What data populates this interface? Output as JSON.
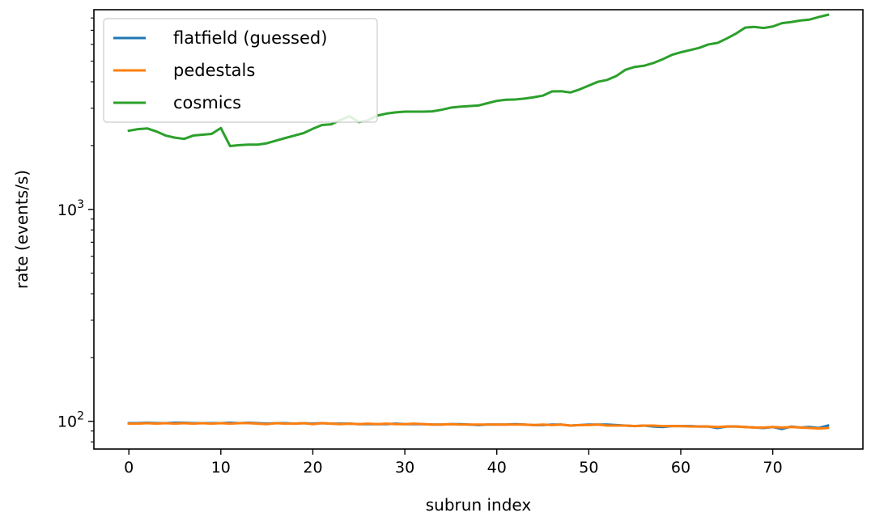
{
  "chart_data": {
    "type": "line",
    "xlabel": "subrun index",
    "ylabel": "rate (events/s)",
    "yscale": "log",
    "xlim": [
      -3.8,
      79.8
    ],
    "ylim": [
      74,
      8750
    ],
    "xticks": [
      0,
      10,
      20,
      30,
      40,
      50,
      60,
      70
    ],
    "xtick_labels": [
      "0",
      "10",
      "20",
      "30",
      "40",
      "50",
      "60",
      "70"
    ],
    "yticks_major": [
      100,
      1000
    ],
    "ytick_labels": [
      {
        "base": "10",
        "exp": "2"
      },
      {
        "base": "10",
        "exp": "3"
      }
    ],
    "yticks_minor": [
      80,
      90,
      200,
      300,
      400,
      500,
      600,
      700,
      800,
      900,
      2000,
      3000,
      4000,
      5000,
      6000,
      7000,
      8000
    ],
    "grid": false,
    "legend_position": "top-left",
    "series": [
      {
        "name": "flatfield (guessed)",
        "color": "#1f77b4",
        "x": [
          0,
          1,
          2,
          3,
          4,
          5,
          6,
          7,
          8,
          9,
          10,
          11,
          12,
          13,
          14,
          15,
          16,
          17,
          18,
          19,
          20,
          21,
          22,
          23,
          24,
          25,
          26,
          27,
          28,
          29,
          30,
          31,
          32,
          33,
          34,
          35,
          36,
          37,
          38,
          39,
          40,
          41,
          42,
          43,
          44,
          45,
          46,
          47,
          48,
          49,
          50,
          51,
          52,
          53,
          54,
          55,
          56,
          57,
          58,
          59,
          60,
          61,
          62,
          63,
          64,
          65,
          66,
          67,
          68,
          69,
          70,
          71,
          72,
          73,
          74,
          75,
          76
        ],
        "y": [
          98,
          98,
          98.5,
          98,
          98,
          98.5,
          98.5,
          98,
          98,
          98,
          98,
          98.5,
          98,
          98.5,
          98,
          97.5,
          98,
          98,
          97.5,
          98,
          97.5,
          98,
          97.5,
          97.5,
          97.5,
          97,
          97,
          97,
          97,
          97.5,
          97,
          97,
          97,
          96.5,
          96.5,
          97,
          97,
          96.5,
          96,
          96.5,
          96.5,
          96.5,
          97,
          96.5,
          96,
          96,
          96.5,
          96.5,
          95.5,
          96,
          96.5,
          96.5,
          96.5,
          96,
          95.5,
          95,
          95.5,
          94.5,
          94,
          95,
          95,
          95,
          94.5,
          94.5,
          93,
          94.5,
          94.5,
          94,
          93.5,
          93,
          94,
          92,
          94.5,
          93.5,
          94,
          93,
          95.5
        ]
      },
      {
        "name": "pedestals",
        "color": "#ff7f0e",
        "x": [
          0,
          1,
          2,
          3,
          4,
          5,
          6,
          7,
          8,
          9,
          10,
          11,
          12,
          13,
          14,
          15,
          16,
          17,
          18,
          19,
          20,
          21,
          22,
          23,
          24,
          25,
          26,
          27,
          28,
          29,
          30,
          31,
          32,
          33,
          34,
          35,
          36,
          37,
          38,
          39,
          40,
          41,
          42,
          43,
          44,
          45,
          46,
          47,
          48,
          49,
          50,
          51,
          52,
          53,
          54,
          55,
          56,
          57,
          58,
          59,
          60,
          61,
          62,
          63,
          64,
          65,
          66,
          67,
          68,
          69,
          70,
          71,
          72,
          73,
          74,
          75,
          76
        ],
        "y": [
          97.5,
          97.5,
          98,
          97.5,
          98,
          97.5,
          98,
          97.5,
          98,
          97.5,
          98,
          97.5,
          98,
          98,
          97.5,
          97,
          98,
          97.5,
          97.5,
          98,
          97,
          98,
          97.5,
          97,
          97.5,
          97,
          97.5,
          97,
          97.5,
          97,
          97,
          97.5,
          97,
          96.5,
          96.5,
          97,
          96.5,
          96.5,
          96.5,
          96.5,
          96.5,
          96.5,
          96.5,
          96.5,
          96,
          96.5,
          96,
          96.5,
          95.5,
          96,
          96,
          96.5,
          95.5,
          95.5,
          95.5,
          95,
          95.5,
          95.5,
          95,
          95,
          95,
          94.5,
          94.5,
          94.5,
          94,
          94.5,
          94.5,
          94,
          93.5,
          93.5,
          94,
          93.5,
          94,
          93.5,
          93,
          92.5,
          93
        ]
      },
      {
        "name": "cosmics",
        "color": "#2ca02c",
        "x": [
          0,
          1,
          2,
          3,
          4,
          5,
          6,
          7,
          8,
          9,
          10,
          11,
          12,
          13,
          14,
          15,
          16,
          17,
          18,
          19,
          20,
          21,
          22,
          23,
          24,
          25,
          26,
          27,
          28,
          29,
          30,
          31,
          32,
          33,
          34,
          35,
          36,
          37,
          38,
          39,
          40,
          41,
          42,
          43,
          44,
          45,
          46,
          47,
          48,
          49,
          50,
          51,
          52,
          53,
          54,
          55,
          56,
          57,
          58,
          59,
          60,
          61,
          62,
          63,
          64,
          65,
          66,
          67,
          68,
          69,
          70,
          71,
          72,
          73,
          74,
          75,
          76
        ],
        "y": [
          2350,
          2390,
          2410,
          2330,
          2230,
          2180,
          2150,
          2230,
          2250,
          2270,
          2420,
          1990,
          2010,
          2020,
          2020,
          2050,
          2110,
          2170,
          2230,
          2290,
          2400,
          2500,
          2520,
          2640,
          2750,
          2580,
          2630,
          2770,
          2830,
          2870,
          2890,
          2890,
          2890,
          2900,
          2950,
          3020,
          3050,
          3070,
          3090,
          3170,
          3250,
          3290,
          3300,
          3330,
          3380,
          3440,
          3600,
          3610,
          3560,
          3680,
          3840,
          4000,
          4080,
          4260,
          4560,
          4700,
          4760,
          4900,
          5100,
          5350,
          5510,
          5640,
          5780,
          6000,
          6100,
          6400,
          6750,
          7200,
          7260,
          7170,
          7290,
          7560,
          7650,
          7780,
          7860,
          8080,
          8280
        ]
      }
    ]
  }
}
